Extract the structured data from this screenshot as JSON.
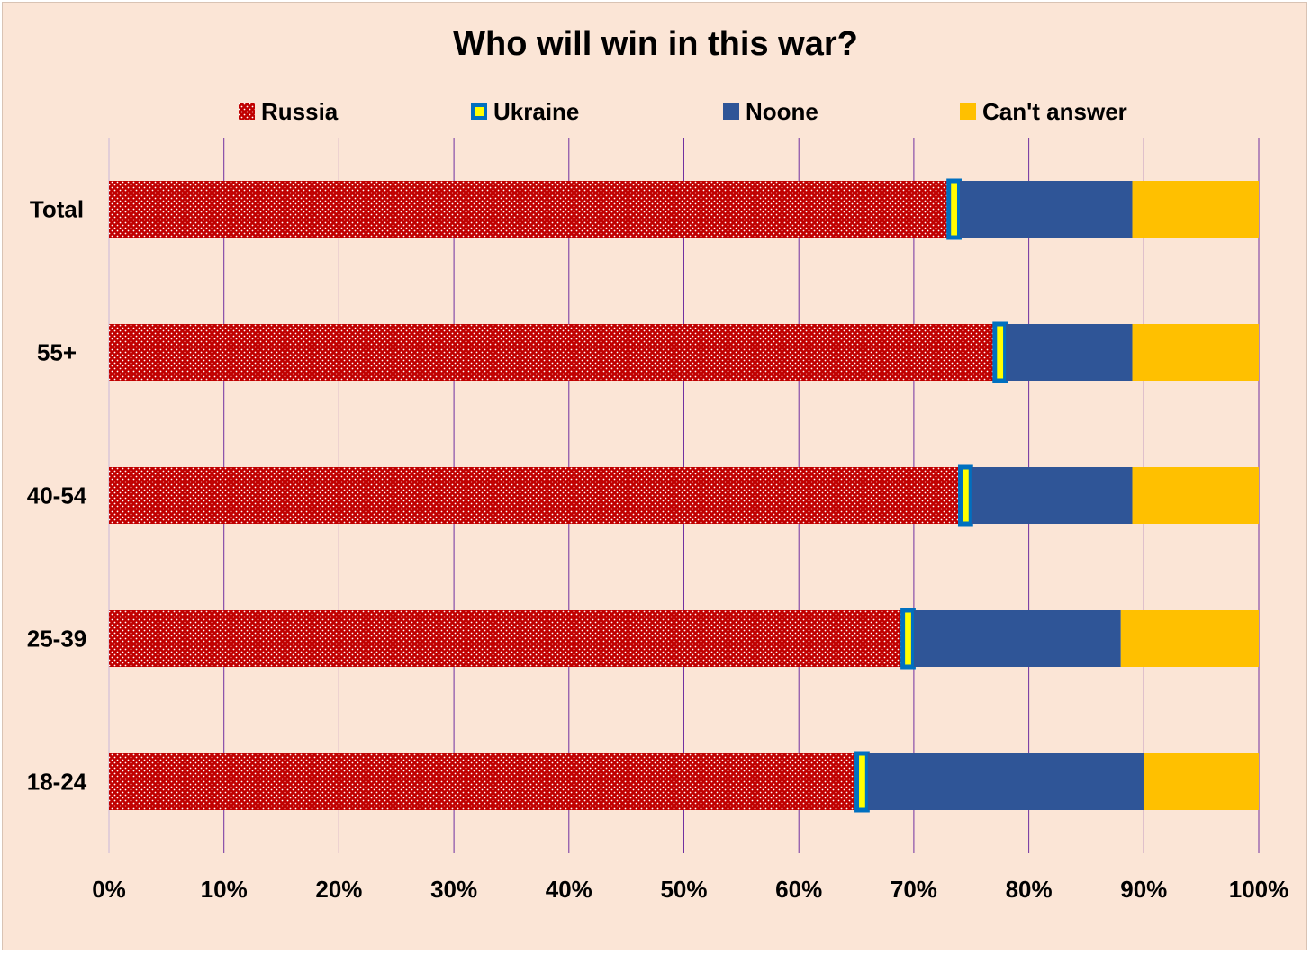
{
  "chart_data": {
    "type": "bar",
    "orientation": "horizontal",
    "stacked": true,
    "title": "Who will win in this war?",
    "xlabel": "",
    "ylabel": "",
    "xlim": [
      0,
      100
    ],
    "x_ticks": [
      "0%",
      "10%",
      "20%",
      "30%",
      "40%",
      "50%",
      "60%",
      "70%",
      "80%",
      "90%",
      "100%"
    ],
    "categories": [
      "Total",
      "55+",
      "40-54",
      "25-39",
      "18-24"
    ],
    "series": [
      {
        "name": "Russia",
        "color": "#c00000",
        "pattern": "dotted",
        "values": [
          73,
          77,
          74,
          69,
          65
        ]
      },
      {
        "name": "Ukraine",
        "color": "#ffff00",
        "border": "#0070c0",
        "values": [
          1,
          1,
          1,
          1,
          1
        ]
      },
      {
        "name": "Noone",
        "color": "#2f5597",
        "values": [
          15,
          11,
          14,
          18,
          24
        ]
      },
      {
        "name": "Can't answer",
        "color": "#ffc000",
        "values": [
          11,
          11,
          11,
          12,
          10
        ]
      }
    ],
    "legend_position": "top",
    "grid": "vertical",
    "grid_color": "#7030a0"
  }
}
